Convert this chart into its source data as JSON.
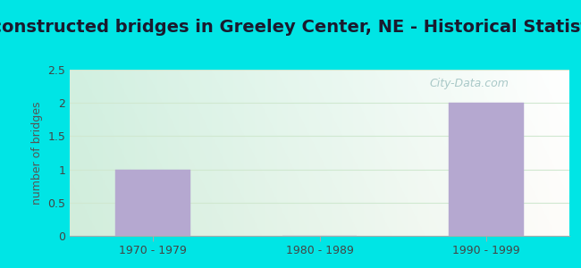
{
  "title": "Reconstructed bridges in Greeley Center, NE - Historical Statistics",
  "categories": [
    "1970 - 1979",
    "1980 - 1989",
    "1990 - 1999"
  ],
  "values": [
    1,
    0,
    2
  ],
  "bar_color": "#b5a8d0",
  "bar_edgecolor": "#b5a8d0",
  "ylabel": "number of bridges",
  "ylim": [
    0,
    2.5
  ],
  "yticks": [
    0,
    0.5,
    1,
    1.5,
    2,
    2.5
  ],
  "bg_outer": "#00e5e5",
  "bg_plot_topleft": "#d8f0d8",
  "bg_plot_topright": "#e8f5f5",
  "bg_plot_bottomleft": "#c8ecd8",
  "bg_plot_bottomright": "#f0faf8",
  "grid_color": "#d0e8d0",
  "title_fontsize": 14,
  "title_color": "#1a1a2e",
  "axis_label_fontsize": 9,
  "tick_fontsize": 9,
  "ylabel_color": "#555555",
  "watermark": "City-Data.com"
}
